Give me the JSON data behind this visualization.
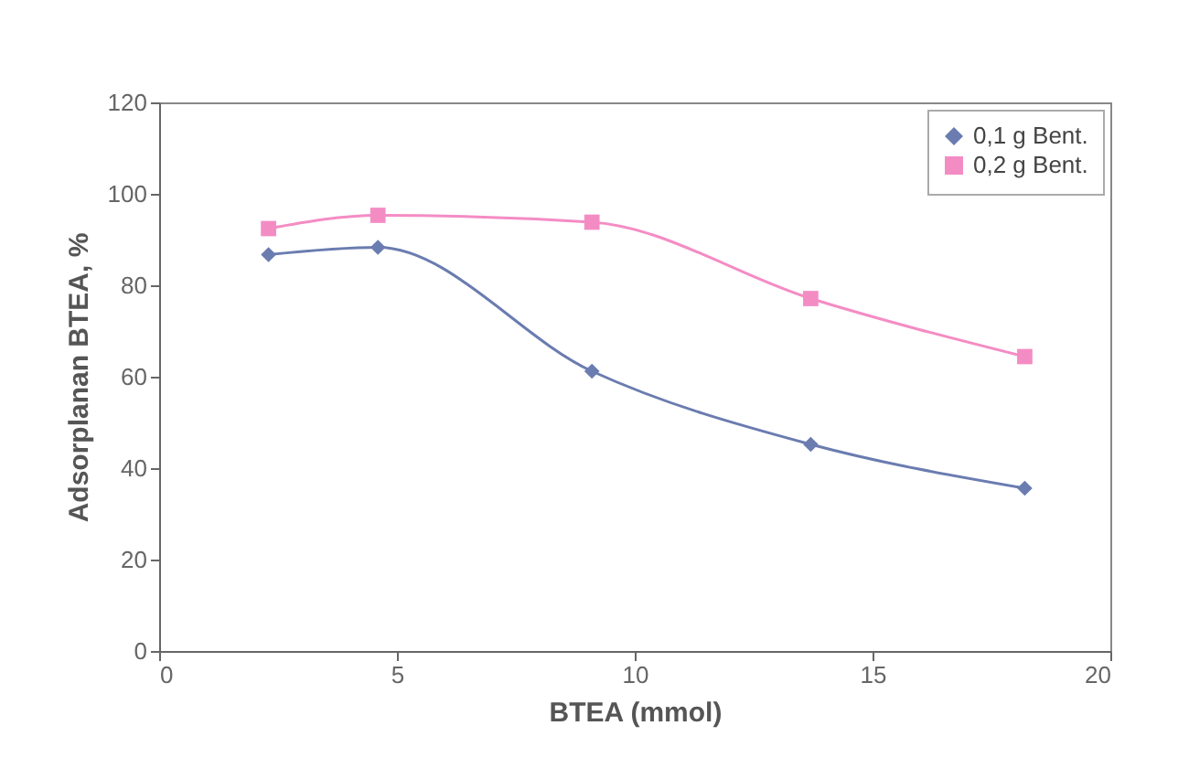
{
  "chart_data": {
    "type": "line",
    "xlabel": "BTEA (mmol)",
    "ylabel": "Adsorplanan BTEA, %",
    "xlim": [
      0,
      20
    ],
    "xticks": [
      0,
      5,
      10,
      15,
      20
    ],
    "ylim": [
      0,
      120
    ],
    "yticks": [
      0,
      20,
      40,
      60,
      80,
      100,
      120
    ],
    "x": [
      2.3,
      4.6,
      9.1,
      13.7,
      18.2
    ],
    "series": [
      {
        "name": "0,1 g Bent.",
        "color": "#6a7cb0",
        "marker": "diamond",
        "values": [
          86.7,
          88.3,
          61.2,
          45.2,
          35.6
        ]
      },
      {
        "name": "0,2 g Bent.",
        "color": "#f48cc4",
        "marker": "square",
        "values": [
          92.4,
          95.3,
          93.8,
          77.1,
          64.4
        ]
      }
    ],
    "grid": false,
    "legend": "top right",
    "line_style": "solid"
  }
}
